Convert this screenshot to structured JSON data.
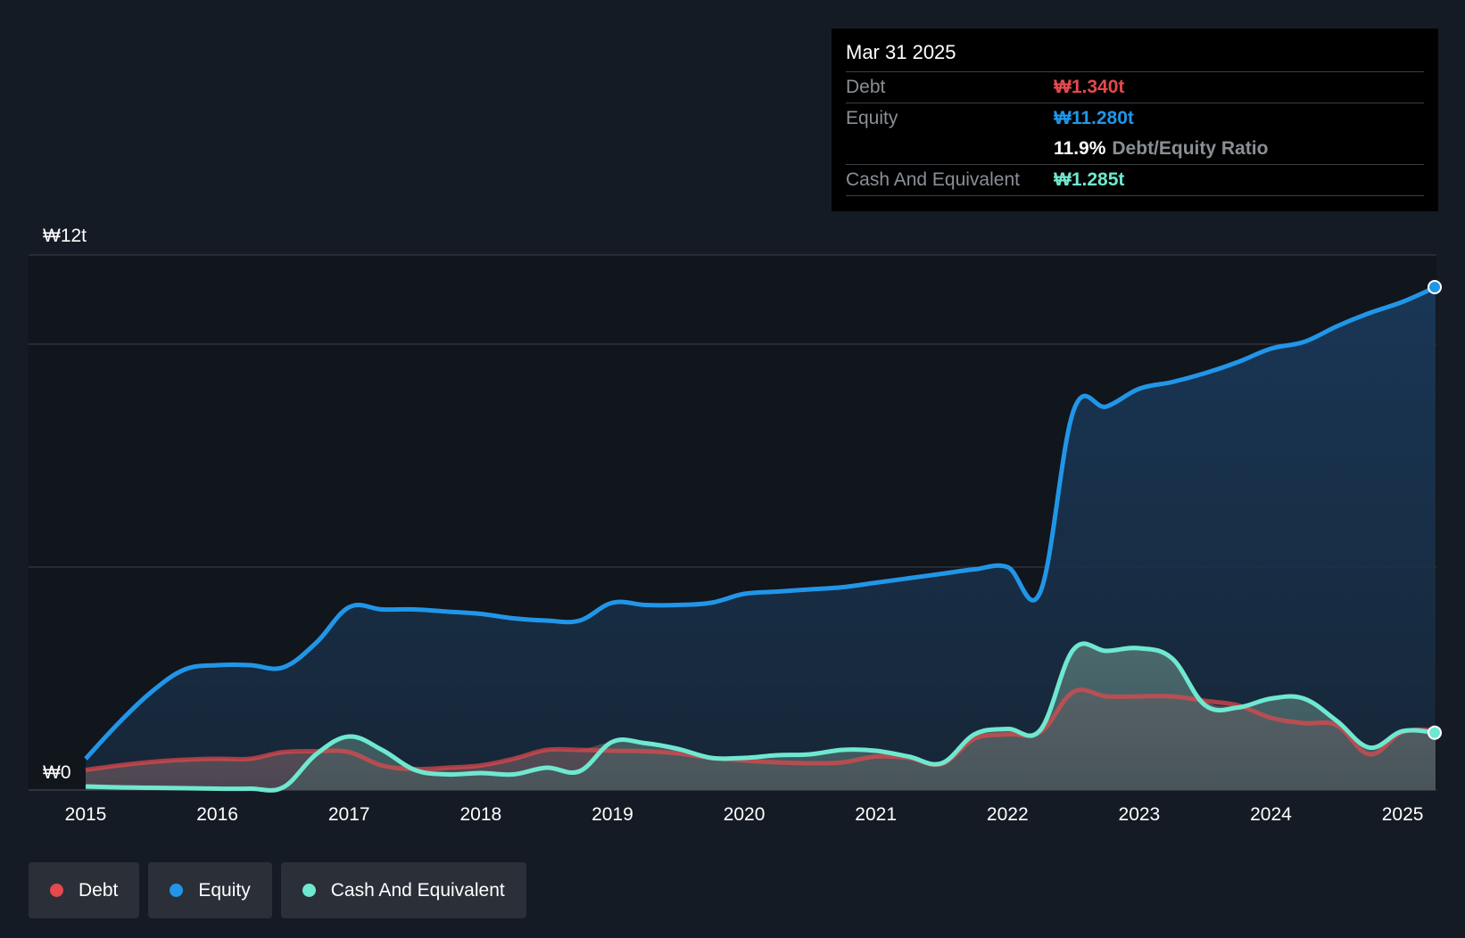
{
  "colors": {
    "debt": "#e5484d",
    "equity": "#2196e8",
    "cash": "#6fe8d0",
    "grid": "#3a3f47",
    "axis_text": "#ffffff"
  },
  "tooltip": {
    "date": "Mar 31 2025",
    "debt_label": "Debt",
    "debt_value": "₩1.340t",
    "equity_label": "Equity",
    "equity_value": "₩11.280t",
    "ratio_value": "11.9%",
    "ratio_label": "Debt/Equity Ratio",
    "cash_label": "Cash And Equivalent",
    "cash_value": "₩1.285t"
  },
  "legend": [
    {
      "label": "Debt",
      "color": "#e5484d"
    },
    {
      "label": "Equity",
      "color": "#2196e8"
    },
    {
      "label": "Cash And Equivalent",
      "color": "#6fe8d0"
    }
  ],
  "chart_data": {
    "type": "area",
    "title": "",
    "xlabel": "",
    "ylabel": "",
    "xlim": [
      2015.0,
      2025.25
    ],
    "ylim": [
      0,
      12
    ],
    "y_tick_labels": [
      {
        "value": 12,
        "label": "₩12t"
      },
      {
        "value": 0,
        "label": "₩0"
      }
    ],
    "gridlines": [
      12,
      10,
      5,
      0
    ],
    "x_tick_labels": [
      "2015",
      "2016",
      "2017",
      "2018",
      "2019",
      "2020",
      "2021",
      "2022",
      "2023",
      "2024",
      "2025"
    ],
    "series": [
      {
        "name": "Equity",
        "x": [
          2015.0,
          2015.25,
          2015.5,
          2015.75,
          2016.0,
          2016.25,
          2016.5,
          2016.75,
          2017.0,
          2017.25,
          2017.5,
          2017.75,
          2018.0,
          2018.25,
          2018.5,
          2018.75,
          2019.0,
          2019.25,
          2019.5,
          2019.75,
          2020.0,
          2020.25,
          2020.5,
          2020.75,
          2021.0,
          2021.25,
          2021.5,
          2021.75,
          2022.0,
          2022.25,
          2022.5,
          2022.75,
          2023.0,
          2023.25,
          2023.5,
          2023.75,
          2024.0,
          2024.25,
          2024.5,
          2024.75,
          2025.0,
          2025.25
        ],
        "values": [
          0.7,
          1.5,
          2.2,
          2.7,
          2.8,
          2.8,
          2.75,
          3.3,
          4.1,
          4.05,
          4.05,
          4.0,
          3.95,
          3.85,
          3.8,
          3.8,
          4.2,
          4.15,
          4.15,
          4.2,
          4.4,
          4.45,
          4.5,
          4.55,
          4.65,
          4.75,
          4.85,
          4.95,
          5.0,
          4.45,
          8.5,
          8.6,
          9.0,
          9.15,
          9.35,
          9.6,
          9.9,
          10.05,
          10.4,
          10.7,
          10.95,
          11.28
        ]
      },
      {
        "name": "Debt",
        "x": [
          2015.0,
          2015.25,
          2015.5,
          2015.75,
          2016.0,
          2016.25,
          2016.5,
          2016.75,
          2017.0,
          2017.25,
          2017.5,
          2017.75,
          2018.0,
          2018.25,
          2018.5,
          2018.75,
          2019.0,
          2019.25,
          2019.5,
          2019.75,
          2020.0,
          2020.25,
          2020.5,
          2020.75,
          2021.0,
          2021.25,
          2021.5,
          2021.75,
          2022.0,
          2022.25,
          2022.5,
          2022.75,
          2023.0,
          2023.25,
          2023.5,
          2023.75,
          2024.0,
          2024.25,
          2024.5,
          2024.75,
          2025.0,
          2025.25
        ],
        "values": [
          0.45,
          0.55,
          0.63,
          0.68,
          0.7,
          0.7,
          0.85,
          0.87,
          0.85,
          0.55,
          0.47,
          0.5,
          0.55,
          0.7,
          0.9,
          0.9,
          0.88,
          0.87,
          0.82,
          0.72,
          0.66,
          0.62,
          0.6,
          0.62,
          0.75,
          0.72,
          0.58,
          1.15,
          1.25,
          1.3,
          2.2,
          2.1,
          2.1,
          2.1,
          2.0,
          1.9,
          1.62,
          1.5,
          1.45,
          0.8,
          1.3,
          1.34
        ]
      },
      {
        "name": "Cash And Equivalent",
        "x": [
          2015.0,
          2015.25,
          2015.5,
          2015.75,
          2016.0,
          2016.25,
          2016.5,
          2016.75,
          2017.0,
          2017.25,
          2017.5,
          2017.75,
          2018.0,
          2018.25,
          2018.5,
          2018.75,
          2019.0,
          2019.25,
          2019.5,
          2019.75,
          2020.0,
          2020.25,
          2020.5,
          2020.75,
          2021.0,
          2021.25,
          2021.5,
          2021.75,
          2022.0,
          2022.25,
          2022.5,
          2022.75,
          2023.0,
          2023.25,
          2023.5,
          2023.75,
          2024.0,
          2024.25,
          2024.5,
          2024.75,
          2025.0,
          2025.25
        ],
        "values": [
          0.08,
          0.06,
          0.05,
          0.04,
          0.03,
          0.03,
          0.06,
          0.8,
          1.2,
          0.9,
          0.45,
          0.35,
          0.38,
          0.35,
          0.5,
          0.42,
          1.08,
          1.05,
          0.92,
          0.72,
          0.72,
          0.78,
          0.8,
          0.9,
          0.88,
          0.75,
          0.6,
          1.25,
          1.37,
          1.35,
          3.15,
          3.12,
          3.18,
          2.95,
          1.9,
          1.85,
          2.05,
          2.05,
          1.55,
          0.95,
          1.32,
          1.285
        ]
      }
    ]
  }
}
